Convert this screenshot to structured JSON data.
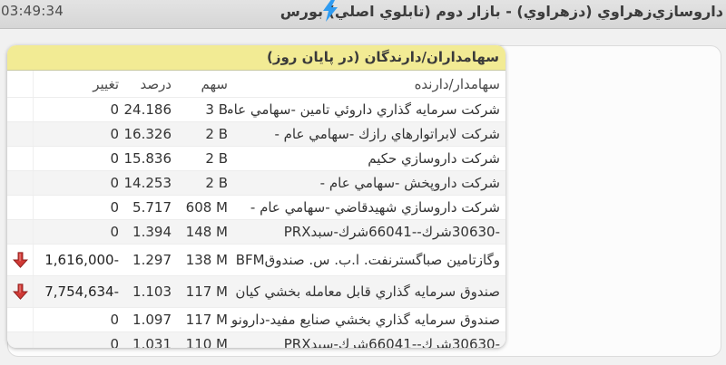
{
  "top_bar": {
    "time": "03:49:34",
    "title": "داروسازي‌زهراوي (دزهراوي) - بازار دوم (تابلوي اصلي) بورس",
    "bolt_icon": "lightning-bolt-icon",
    "bolt_color": "#2f9bf0"
  },
  "panel_title": "سهامداران/دارندگان (در پايان روز)",
  "table": {
    "columns": {
      "holder": "سهامدار/دارنده",
      "shares": "سهم",
      "percent": "درصد",
      "change": "تغيير"
    },
    "rows": [
      {
        "name_rtl": "شركت سرمايه گذاري داروئي تامين -سهامي عام -",
        "shares": "3 B",
        "percent": "24.186",
        "change": "0",
        "negative": false
      },
      {
        "name_rtl": "شركت لابراتوارهاي رازك -سهامي عام -",
        "shares": "2 B",
        "percent": "16.326",
        "change": "0",
        "negative": false
      },
      {
        "name_rtl": "شركت داروسازي حكيم",
        "shares": "2 B",
        "percent": "15.836",
        "change": "0",
        "negative": false
      },
      {
        "name_rtl": "شركت داروپخش -سهامي عام -",
        "shares": "2 B",
        "percent": "14.253",
        "change": "0",
        "negative": false
      },
      {
        "name_rtl": "شركت داروسازي شهيدقاضي -سهامي عام -",
        "shares": "608 M",
        "percent": "5.717",
        "change": "0",
        "negative": false
      },
      {
        "name_tokens": [
          "PRX",
          "سبد",
          "-",
          "شرك",
          "66041",
          "--",
          "شرك",
          "30630",
          "-"
        ],
        "shares": "148 M",
        "percent": "1.394",
        "change": "0",
        "negative": false
      },
      {
        "name_tokens": [
          "BFM",
          "صندوق",
          " .س",
          " .ا.ب",
          " .صباگسترنفت",
          " وگازتامين"
        ],
        "shares": "138 M",
        "percent": "1.297",
        "change": "1,616,000-",
        "negative": true
      },
      {
        "name_rtl": "صندوق سرمايه گذاري قابل معامله بخشي كيان",
        "shares": "117 M",
        "percent": "1.103",
        "change": "7,754,634-",
        "negative": true
      },
      {
        "name_rtl": "صندوق سرمايه گذاري بخشي صنايع مفيد-دارونو",
        "shares": "117 M",
        "percent": "1.097",
        "change": "0",
        "negative": false
      },
      {
        "name_tokens": [
          "PRX",
          "سبد",
          "-",
          "شرك",
          "66041",
          "--",
          "شرك",
          "30630",
          "-"
        ],
        "shares": "110 M",
        "percent": "1.031",
        "change": "0",
        "negative": false
      }
    ]
  },
  "colors": {
    "accent_yellow": "#f2eb94",
    "negative_red": "#c62828",
    "topbar_gray": "#d9d9d9",
    "row_alt": "#f4f4f4"
  }
}
